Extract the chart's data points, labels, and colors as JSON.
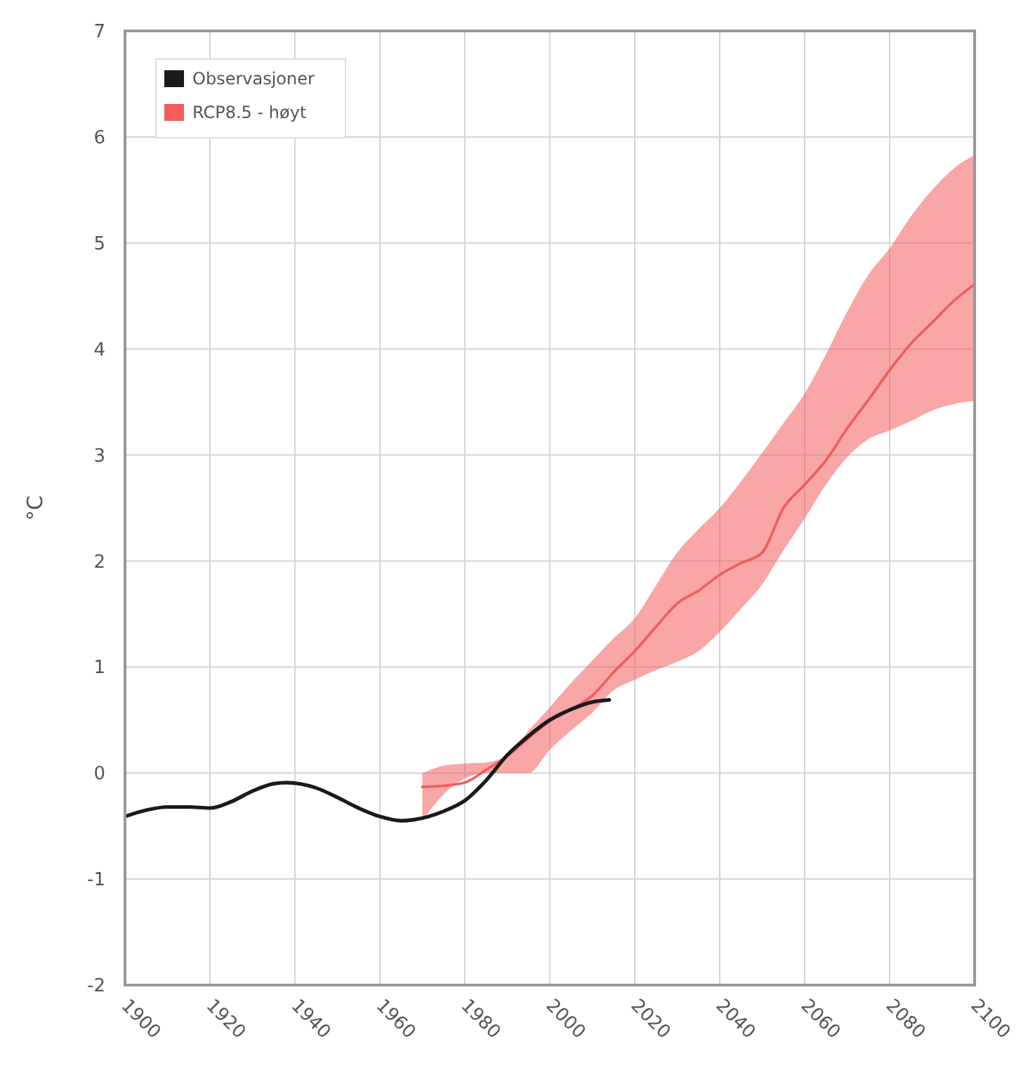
{
  "chart_data": {
    "type": "line",
    "ylabel": "°C",
    "xlim": [
      1900,
      2100
    ],
    "xticks": [
      1900,
      1920,
      1940,
      1960,
      1980,
      2000,
      2020,
      2040,
      2060,
      2080,
      2100
    ],
    "ylim": [
      -2,
      7
    ],
    "yticks": [
      -2,
      -1,
      0,
      1,
      2,
      3,
      4,
      5,
      6,
      7
    ],
    "grid": true,
    "legend": "top left",
    "series": [
      {
        "name": "Observasjoner",
        "color": "#1a1a1a",
        "x": [
          1900,
          1905,
          1910,
          1915,
          1920,
          1925,
          1930,
          1935,
          1938,
          1945,
          1950,
          1955,
          1960,
          1965,
          1968,
          1975,
          1980,
          1985,
          1990,
          1995,
          2000,
          2005,
          2010,
          2014
        ],
        "values": [
          -0.41,
          -0.35,
          -0.32,
          -0.32,
          -0.33,
          -0.27,
          -0.17,
          -0.1,
          -0.09,
          -0.14,
          -0.23,
          -0.33,
          -0.41,
          -0.45,
          -0.44,
          -0.36,
          -0.26,
          -0.07,
          0.17,
          0.35,
          0.5,
          0.6,
          0.67,
          0.69
        ]
      },
      {
        "name": "RCP8.5 - høyt",
        "color": "#f25c5c",
        "x": [
          1970,
          1975,
          1980,
          1985,
          1990,
          1995,
          2000,
          2005,
          2010,
          2015,
          2020,
          2025,
          2030,
          2035,
          2040,
          2045,
          2050,
          2055,
          2060,
          2065,
          2070,
          2075,
          2080,
          2085,
          2090,
          2095,
          2100
        ],
        "values": [
          -0.13,
          -0.12,
          -0.09,
          0.03,
          0.16,
          0.33,
          0.49,
          0.6,
          0.73,
          0.95,
          1.15,
          1.38,
          1.6,
          1.72,
          1.87,
          1.98,
          2.08,
          2.5,
          2.72,
          2.95,
          3.25,
          3.52,
          3.8,
          4.05,
          4.25,
          4.45,
          4.61
        ],
        "upper": [
          0.0,
          0.07,
          0.09,
          0.1,
          0.17,
          0.4,
          0.62,
          0.85,
          1.06,
          1.27,
          1.46,
          1.77,
          2.08,
          2.3,
          2.5,
          2.75,
          3.02,
          3.3,
          3.58,
          3.95,
          4.35,
          4.7,
          4.95,
          5.25,
          5.5,
          5.7,
          5.83
        ],
        "lower": [
          -0.45,
          -0.2,
          -0.05,
          0.0,
          0.0,
          0.0,
          0.22,
          0.4,
          0.57,
          0.78,
          0.88,
          0.97,
          1.05,
          1.15,
          1.33,
          1.55,
          1.78,
          2.1,
          2.4,
          2.72,
          2.98,
          3.15,
          3.23,
          3.32,
          3.42,
          3.48,
          3.51
        ]
      }
    ]
  }
}
